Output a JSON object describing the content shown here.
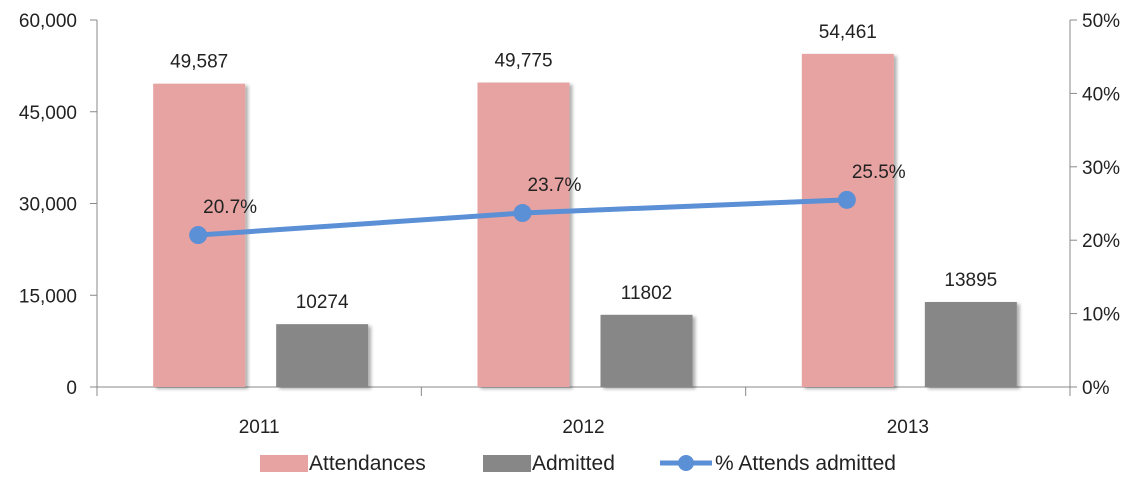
{
  "chart_data": {
    "type": "bar",
    "categories": [
      "2011",
      "2012",
      "2013"
    ],
    "series": [
      {
        "name": "Attendances",
        "kind": "bar",
        "axis": "left",
        "color": "#E6A3A1",
        "values": [
          49587,
          49775,
          54461
        ],
        "labels": [
          "49,587",
          "49,775",
          "54,461"
        ]
      },
      {
        "name": "Admitted",
        "kind": "bar",
        "axis": "left",
        "color": "#878787",
        "values": [
          10274,
          11802,
          13895
        ],
        "labels": [
          "10274",
          "11802",
          "13895"
        ]
      },
      {
        "name": "% Attends admitted",
        "kind": "line",
        "axis": "right",
        "color": "#5B8FD6",
        "values": [
          20.7,
          23.7,
          25.5
        ],
        "labels": [
          "20.7%",
          "23.7%",
          "25.5%"
        ]
      }
    ],
    "y_left": {
      "range": [
        0,
        60000
      ],
      "ticks": [
        0,
        15000,
        30000,
        45000,
        60000
      ],
      "tick_labels": [
        "0",
        "15,000",
        "30,000",
        "45,000",
        "60,000"
      ]
    },
    "y_right": {
      "range": [
        0,
        50
      ],
      "ticks": [
        0,
        10,
        20,
        30,
        40,
        50
      ],
      "tick_labels": [
        "0%",
        "10%",
        "20%",
        "30%",
        "40%",
        "50%"
      ]
    },
    "title": "",
    "xlabel": "",
    "ylabel": "",
    "grid": false,
    "legend": "bottom",
    "axis_color": "#888888"
  }
}
